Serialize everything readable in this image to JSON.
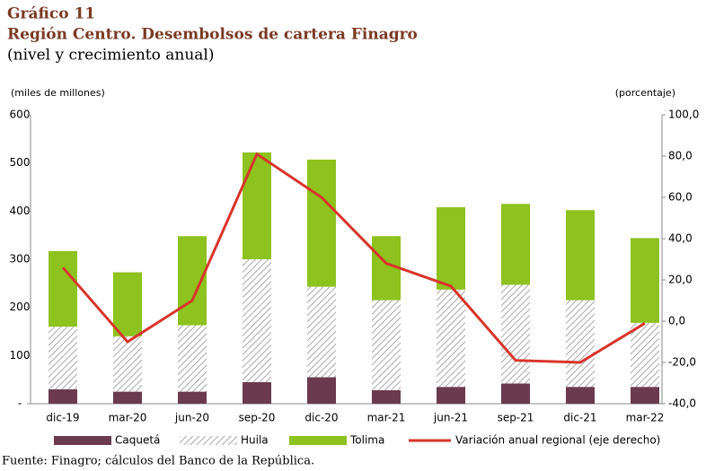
{
  "chart_data": {
    "type": "bar",
    "figure_label": "Gráfico 11",
    "title": "Región Centro. Desembolsos de cartera Finagro",
    "subtitle": "(nivel y crecimiento anual)",
    "ylabel": "(miles de millones)",
    "y2label": "(porcentaje)",
    "source": "Fuente: Finagro; cálculos del Banco de la República.",
    "categories": [
      "dic-19",
      "mar-20",
      "jun-20",
      "sep-20",
      "dic-20",
      "mar-21",
      "jun-21",
      "sep-21",
      "dic-21",
      "mar-22"
    ],
    "series": [
      {
        "name": "Caquetá",
        "color": "#6b3a4e",
        "values": [
          30,
          25,
          25,
          45,
          55,
          28,
          35,
          42,
          35,
          35
        ]
      },
      {
        "name": "Huila",
        "color": "#a8a8a8",
        "pattern": "hatch",
        "values": [
          130,
          115,
          138,
          255,
          188,
          187,
          202,
          205,
          180,
          133
        ]
      },
      {
        "name": "Tolima",
        "color": "#8dc21f",
        "values": [
          157,
          133,
          185,
          222,
          264,
          133,
          171,
          168,
          187,
          176
        ]
      },
      {
        "name": "Variación anual regional (eje derecho)",
        "color": "#d9342b",
        "type": "line",
        "axis": "y2",
        "values": [
          26,
          -10,
          10,
          81,
          60,
          28,
          17,
          -19,
          -20,
          -1
        ]
      }
    ],
    "stacked": true,
    "ylim": [
      0,
      600
    ],
    "yticks": [
      {
        "value": 0,
        "label": "-"
      },
      100,
      200,
      300,
      400,
      500,
      600
    ],
    "y2lim": [
      -40,
      100
    ],
    "y2ticks": [
      {
        "value": -40,
        "label": "-40,0"
      },
      {
        "value": -20,
        "label": "-20,0"
      },
      {
        "value": 0,
        "label": "0,0"
      },
      {
        "value": 20,
        "label": "20,0"
      },
      {
        "value": 40,
        "label": "40,0"
      },
      {
        "value": 60,
        "label": "60,0"
      },
      {
        "value": 80,
        "label": "80,0"
      },
      {
        "value": 100,
        "label": "100,0"
      }
    ]
  }
}
